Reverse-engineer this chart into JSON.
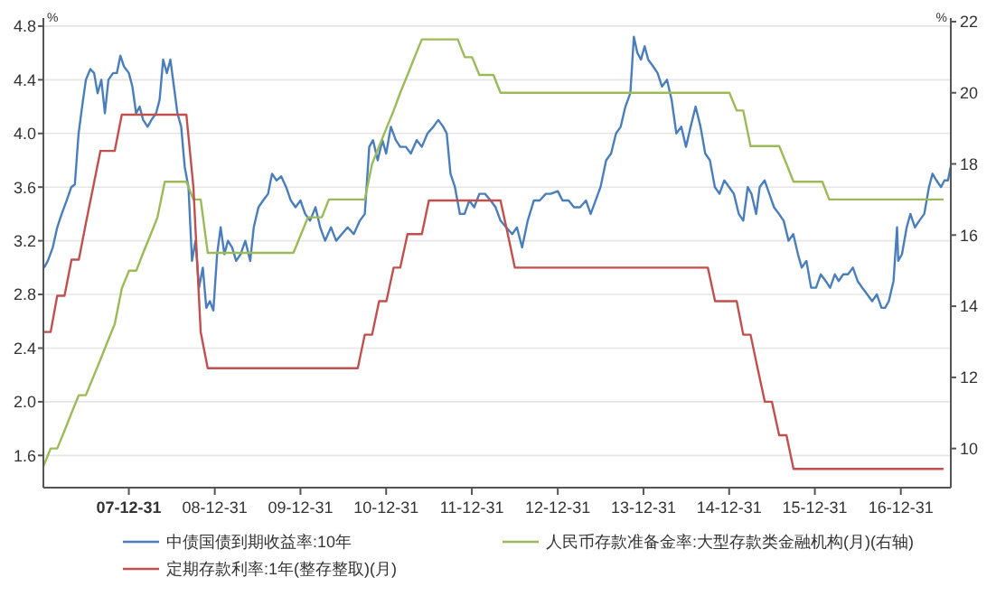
{
  "chart_data": {
    "type": "line",
    "xlim": [
      "2007-01-01",
      "2017-08-01"
    ],
    "xticks": [
      {
        "value": "2007-12-31",
        "label": "07-12-31"
      },
      {
        "value": "2008-12-31",
        "label": "08-12-31"
      },
      {
        "value": "2009-12-31",
        "label": "09-12-31"
      },
      {
        "value": "2010-12-31",
        "label": "10-12-31"
      },
      {
        "value": "2011-12-31",
        "label": "11-12-31"
      },
      {
        "value": "2012-12-31",
        "label": "12-12-31"
      },
      {
        "value": "2013-12-31",
        "label": "13-12-31"
      },
      {
        "value": "2014-12-31",
        "label": "14-12-31"
      },
      {
        "value": "2015-12-31",
        "label": "15-12-31"
      },
      {
        "value": "2016-12-31",
        "label": "16-12-31"
      }
    ],
    "ylim": [
      1.36,
      4.86
    ],
    "yticks": [
      {
        "value": 1.6,
        "label": "1.6"
      },
      {
        "value": 2,
        "label": "2.0"
      },
      {
        "value": 2.4,
        "label": "2.4"
      },
      {
        "value": 2.8,
        "label": "2.8"
      },
      {
        "value": 3.2,
        "label": "3.2"
      },
      {
        "value": 3.6,
        "label": "3.6"
      },
      {
        "value": 4,
        "label": "4.0"
      },
      {
        "value": 4.4,
        "label": "4.4"
      },
      {
        "value": 4.8,
        "label": "4.8"
      }
    ],
    "y2lim": [
      8.9,
      22.1
    ],
    "y2ticks": [
      10,
      12,
      14,
      16,
      18,
      20,
      22
    ],
    "ylabel": "%",
    "y2label": "%",
    "grid": "y",
    "legend": "bottom",
    "series": [
      {
        "name": "中债国债到期收益率:10年",
        "color": "#4a7ebb",
        "x": [
          "2007-01-04",
          "2007-01-20",
          "2007-02-10",
          "2007-03-01",
          "2007-03-20",
          "2007-04-10",
          "2007-04-30",
          "2007-05-15",
          "2007-05-31",
          "2007-06-15",
          "2007-07-01",
          "2007-07-20",
          "2007-08-05",
          "2007-08-20",
          "2007-09-05",
          "2007-09-20",
          "2007-10-05",
          "2007-10-25",
          "2007-11-10",
          "2007-11-25",
          "2007-12-10",
          "2007-12-31",
          "2008-01-15",
          "2008-01-31",
          "2008-02-15",
          "2008-03-01",
          "2008-03-20",
          "2008-04-05",
          "2008-04-25",
          "2008-05-10",
          "2008-05-25",
          "2008-06-10",
          "2008-06-25",
          "2008-07-10",
          "2008-07-25",
          "2008-08-10",
          "2008-08-25",
          "2008-09-10",
          "2008-09-25",
          "2008-10-10",
          "2008-10-25",
          "2008-11-10",
          "2008-11-25",
          "2008-12-10",
          "2008-12-25",
          "2009-01-10",
          "2009-01-25",
          "2009-02-10",
          "2009-02-25",
          "2009-03-15",
          "2009-04-01",
          "2009-04-20",
          "2009-05-10",
          "2009-05-31",
          "2009-06-15",
          "2009-07-05",
          "2009-07-25",
          "2009-08-15",
          "2009-09-01",
          "2009-09-20",
          "2009-10-10",
          "2009-10-31",
          "2009-11-20",
          "2009-12-10",
          "2009-12-31",
          "2010-01-20",
          "2010-02-10",
          "2010-03-05",
          "2010-03-25",
          "2010-04-15",
          "2010-05-10",
          "2010-06-01",
          "2010-06-25",
          "2010-07-20",
          "2010-08-15",
          "2010-09-10",
          "2010-10-01",
          "2010-10-20",
          "2010-11-05",
          "2010-11-25",
          "2010-12-15",
          "2010-12-31",
          "2011-01-20",
          "2011-02-10",
          "2011-03-01",
          "2011-03-25",
          "2011-04-15",
          "2011-05-10",
          "2011-06-01",
          "2011-06-25",
          "2011-07-20",
          "2011-08-10",
          "2011-08-31",
          "2011-09-15",
          "2011-10-01",
          "2011-10-20",
          "2011-11-10",
          "2011-11-30",
          "2011-12-20",
          "2012-01-10",
          "2012-02-01",
          "2012-02-25",
          "2012-03-20",
          "2012-04-10",
          "2012-05-01",
          "2012-05-25",
          "2012-06-20",
          "2012-07-10",
          "2012-08-01",
          "2012-08-25",
          "2012-09-20",
          "2012-10-15",
          "2012-11-10",
          "2012-12-01",
          "2012-12-31",
          "2013-01-20",
          "2013-02-15",
          "2013-03-10",
          "2013-04-05",
          "2013-04-30",
          "2013-05-20",
          "2013-06-10",
          "2013-07-01",
          "2013-07-25",
          "2013-08-15",
          "2013-09-05",
          "2013-09-25",
          "2013-10-15",
          "2013-11-05",
          "2013-11-20",
          "2013-12-05",
          "2013-12-20",
          "2014-01-05",
          "2014-01-20",
          "2014-02-10",
          "2014-03-01",
          "2014-03-20",
          "2014-04-10",
          "2014-04-30",
          "2014-05-20",
          "2014-06-10",
          "2014-06-30",
          "2014-07-20",
          "2014-08-10",
          "2014-08-31",
          "2014-09-20",
          "2014-10-10",
          "2014-10-31",
          "2014-11-20",
          "2014-12-10",
          "2014-12-31",
          "2015-01-20",
          "2015-02-10",
          "2015-03-01",
          "2015-03-20",
          "2015-04-05",
          "2015-04-25",
          "2015-05-10",
          "2015-05-31",
          "2015-06-20",
          "2015-07-10",
          "2015-07-31",
          "2015-08-20",
          "2015-09-10",
          "2015-09-30",
          "2015-10-20",
          "2015-11-05",
          "2015-11-25",
          "2015-12-15",
          "2016-01-05",
          "2016-01-25",
          "2016-02-15",
          "2016-03-05",
          "2016-03-25",
          "2016-04-10",
          "2016-04-30",
          "2016-05-20",
          "2016-06-10",
          "2016-06-30",
          "2016-07-20",
          "2016-08-10",
          "2016-08-31",
          "2016-09-20",
          "2016-10-10",
          "2016-10-25",
          "2016-11-10",
          "2016-11-30",
          "2016-12-15",
          "2016-12-20",
          "2017-01-05",
          "2017-01-25",
          "2017-02-10",
          "2017-03-01",
          "2017-03-20",
          "2017-04-10",
          "2017-04-30",
          "2017-05-15",
          "2017-06-01",
          "2017-06-20",
          "2017-07-05",
          "2017-07-20",
          "2017-07-31"
        ],
        "values": [
          3.0,
          3.05,
          3.15,
          3.3,
          3.4,
          3.5,
          3.6,
          3.62,
          4.0,
          4.2,
          4.4,
          4.48,
          4.45,
          4.3,
          4.4,
          4.15,
          4.4,
          4.45,
          4.45,
          4.58,
          4.5,
          4.45,
          4.35,
          4.15,
          4.2,
          4.1,
          4.05,
          4.1,
          4.15,
          4.25,
          4.55,
          4.45,
          4.55,
          4.35,
          4.15,
          4.05,
          3.75,
          3.6,
          3.05,
          3.2,
          2.85,
          3.0,
          2.7,
          2.75,
          2.68,
          3.1,
          3.3,
          3.1,
          3.2,
          3.15,
          3.05,
          3.1,
          3.2,
          3.05,
          3.3,
          3.45,
          3.5,
          3.55,
          3.7,
          3.65,
          3.68,
          3.6,
          3.5,
          3.45,
          3.5,
          3.4,
          3.35,
          3.45,
          3.3,
          3.2,
          3.3,
          3.2,
          3.25,
          3.3,
          3.25,
          3.35,
          3.4,
          3.9,
          3.95,
          3.8,
          3.95,
          3.85,
          4.05,
          3.95,
          3.9,
          3.9,
          3.85,
          3.95,
          3.9,
          4.0,
          4.05,
          4.1,
          4.05,
          4.0,
          3.7,
          3.6,
          3.4,
          3.4,
          3.5,
          3.45,
          3.55,
          3.55,
          3.5,
          3.45,
          3.35,
          3.3,
          3.25,
          3.3,
          3.15,
          3.35,
          3.5,
          3.5,
          3.55,
          3.55,
          3.57,
          3.5,
          3.5,
          3.45,
          3.45,
          3.5,
          3.4,
          3.5,
          3.6,
          3.8,
          3.85,
          4.0,
          4.05,
          4.2,
          4.3,
          4.72,
          4.6,
          4.55,
          4.65,
          4.55,
          4.5,
          4.45,
          4.35,
          4.4,
          4.25,
          4.0,
          4.05,
          3.9,
          4.05,
          4.2,
          4.05,
          3.85,
          3.8,
          3.6,
          3.55,
          3.65,
          3.6,
          3.55,
          3.4,
          3.35,
          3.6,
          3.55,
          3.4,
          3.6,
          3.65,
          3.55,
          3.45,
          3.4,
          3.35,
          3.2,
          3.25,
          3.1,
          3.0,
          3.05,
          2.85,
          2.85,
          2.95,
          2.9,
          2.85,
          2.95,
          2.9,
          2.95,
          2.95,
          3.0,
          2.9,
          2.85,
          2.8,
          2.75,
          2.8,
          2.7,
          2.7,
          2.75,
          2.9,
          3.3,
          3.05,
          3.1,
          3.3,
          3.4,
          3.3,
          3.35,
          3.4,
          3.6,
          3.7,
          3.65,
          3.6,
          3.65,
          3.65,
          3.75
        ]
      },
      {
        "name": "人民币存款准备金率:大型存款类金融机构(月)(右轴)",
        "color": "#9bbb59",
        "axis": "y2",
        "x": [
          "2007-01",
          "2007-02",
          "2007-03",
          "2007-04",
          "2007-05",
          "2007-06",
          "2007-07",
          "2007-08",
          "2007-09",
          "2007-10",
          "2007-11",
          "2007-12",
          "2008-01",
          "2008-02",
          "2008-03",
          "2008-04",
          "2008-05",
          "2008-06",
          "2008-09",
          "2008-10",
          "2008-11",
          "2008-12",
          "2009-12",
          "2010-01",
          "2010-02",
          "2010-04",
          "2010-05",
          "2010-10",
          "2010-11",
          "2010-12",
          "2011-01",
          "2011-02",
          "2011-03",
          "2011-04",
          "2011-05",
          "2011-06",
          "2011-11",
          "2011-12",
          "2012-01",
          "2012-02",
          "2012-04",
          "2012-05",
          "2015-01",
          "2015-02",
          "2015-03",
          "2015-04",
          "2015-08",
          "2015-09",
          "2015-10",
          "2016-02",
          "2016-03",
          "2017-07"
        ],
        "values": [
          9.5,
          10.0,
          10.0,
          10.5,
          11.0,
          11.5,
          11.5,
          12.0,
          12.5,
          13.0,
          13.5,
          14.5,
          15.0,
          15.0,
          15.5,
          16.0,
          16.5,
          17.5,
          17.5,
          17.0,
          17.0,
          15.5,
          15.5,
          16.0,
          16.5,
          16.5,
          17.0,
          17.0,
          18.0,
          18.5,
          19.0,
          19.5,
          20.0,
          20.5,
          21.0,
          21.5,
          21.5,
          21.0,
          21.0,
          20.5,
          20.5,
          20.0,
          20.0,
          19.5,
          19.5,
          18.5,
          18.5,
          18.0,
          17.5,
          17.5,
          17.0,
          17.0
        ]
      },
      {
        "name": "定期存款利率:1年(整存整取)(月)",
        "color": "#c0504d",
        "x": [
          "2007-01",
          "2007-02",
          "2007-03",
          "2007-04",
          "2007-05",
          "2007-06",
          "2007-07",
          "2007-08",
          "2007-09",
          "2007-11",
          "2007-12",
          "2008-09",
          "2008-10",
          "2008-11",
          "2008-12",
          "2010-09",
          "2010-10",
          "2010-11",
          "2010-12",
          "2011-01",
          "2011-02",
          "2011-03",
          "2011-04",
          "2011-06",
          "2011-07",
          "2012-05",
          "2012-06",
          "2012-07",
          "2014-10",
          "2014-11",
          "2015-02",
          "2015-03",
          "2015-04",
          "2015-05",
          "2015-06",
          "2015-07",
          "2015-08",
          "2015-09",
          "2015-10",
          "2017-07"
        ],
        "values": [
          2.52,
          2.52,
          2.79,
          2.79,
          3.06,
          3.06,
          3.33,
          3.6,
          3.87,
          3.87,
          4.14,
          4.14,
          3.6,
          2.52,
          2.25,
          2.25,
          2.5,
          2.5,
          2.75,
          2.75,
          3.0,
          3.0,
          3.25,
          3.25,
          3.5,
          3.5,
          3.25,
          3.0,
          3.0,
          2.75,
          2.75,
          2.5,
          2.5,
          2.25,
          2.0,
          2.0,
          1.75,
          1.75,
          1.5,
          1.5
        ]
      }
    ]
  }
}
